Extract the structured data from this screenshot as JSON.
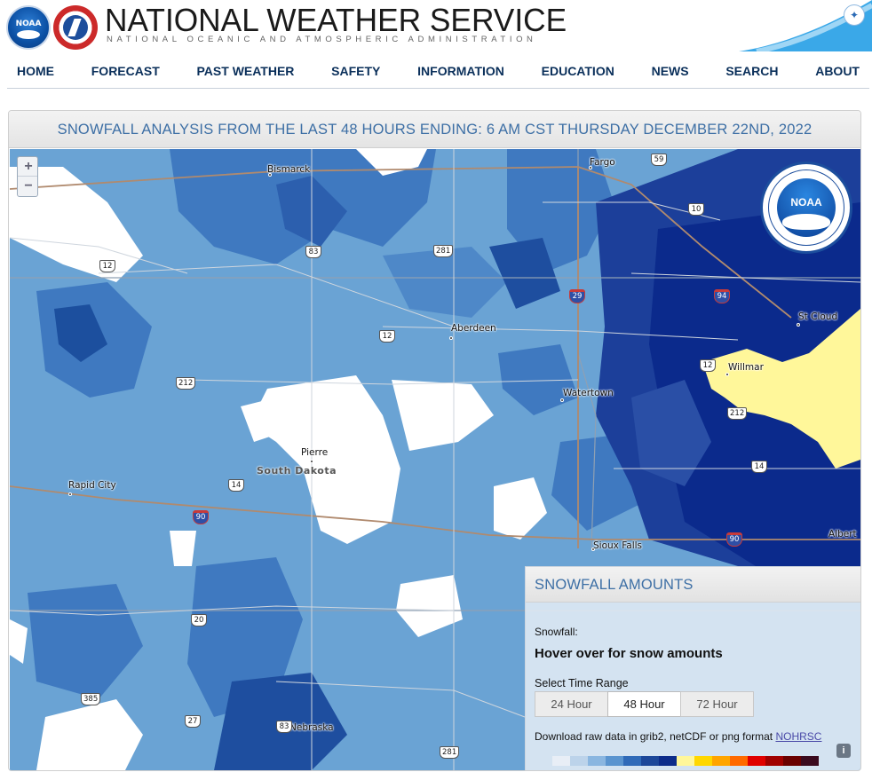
{
  "header": {
    "title": "NATIONAL WEATHER SERVICE",
    "subtitle": "NATIONAL OCEANIC AND ATMOSPHERIC ADMINISTRATION",
    "noaa_logo_text": "NOAA"
  },
  "nav": {
    "items": [
      "HOME",
      "FORECAST",
      "PAST WEATHER",
      "SAFETY",
      "INFORMATION",
      "EDUCATION",
      "NEWS",
      "SEARCH",
      "ABOUT"
    ]
  },
  "panel": {
    "title": "SNOWFALL ANALYSIS FROM THE LAST 48 HOURS ENDING: 6 AM CST THURSDAY DECEMBER 22ND, 2022"
  },
  "map": {
    "zoom_in": "+",
    "zoom_out": "−",
    "cities": [
      "Bismarck",
      "Fargo",
      "Aberdeen",
      "Watertown",
      "St Cloud",
      "Willmar",
      "Pierre",
      "Rapid City",
      "Sioux Falls",
      "Albert",
      "Nebraska",
      "South Dakota"
    ],
    "shields": [
      "12",
      "83",
      "281",
      "59",
      "10",
      "29",
      "94",
      "12",
      "212",
      "212",
      "14",
      "14",
      "90",
      "90",
      "20",
      "385",
      "27",
      "83",
      "281",
      "12"
    ],
    "logo_text": "NOAA"
  },
  "legend": {
    "title": "SNOWFALL AMOUNTS",
    "snowfall_label": "Snowfall:",
    "hover_text": "Hover over for snow amounts",
    "time_range_label": "Select Time Range",
    "time_options": [
      "24 Hour",
      "48 Hour",
      "72 Hour"
    ],
    "selected_time": "48 Hour",
    "download_prefix": "Download raw data in grib2, netCDF or png format ",
    "download_link": "NOHRSC",
    "info_icon": "i",
    "scale_colors": [
      "#e8eef6",
      "#bcd3ea",
      "#8ab6e0",
      "#5a94cf",
      "#2f6ab8",
      "#1c4799",
      "#0c2c8a",
      "#fff79a",
      "#ffd700",
      "#ffa500",
      "#ff6a00",
      "#e00000",
      "#a00000",
      "#6a0000",
      "#3a0a1e"
    ]
  },
  "colors": {
    "accent": "#3d6fa5",
    "nav_text": "#0a2f5a",
    "snow_light": "#6aa3d4",
    "snow_mid": "#3f79c0",
    "snow_dark": "#1c3f9a",
    "snow_heavy": "#0b2a8c",
    "snow_yellow": "#fff79a"
  }
}
